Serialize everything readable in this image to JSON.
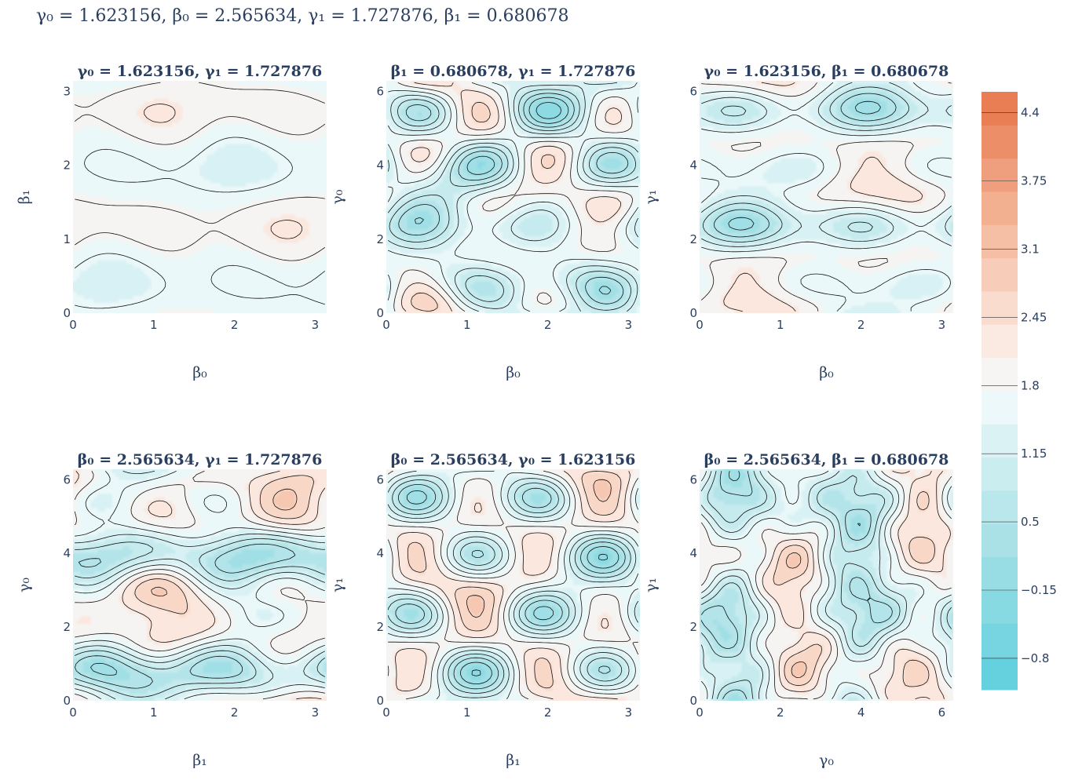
{
  "title": "γ₀ = 1.623156,  β₀ = 2.565634,  γ₁ = 1.727876,  β₁ = 0.680678",
  "params": {
    "gamma0": 1.623156,
    "beta0": 2.565634,
    "gamma1": 1.727876,
    "beta1": 0.680678
  },
  "chart_data": [
    {
      "type": "heatmap",
      "title": "γ₀ = 1.623156,  γ₁ = 1.727876",
      "xlabel": "β₀",
      "ylabel": "β₁",
      "xvar": "beta0",
      "yvar": "beta1",
      "xlim": [
        0,
        3.1416
      ],
      "ylim": [
        0,
        3.1416
      ],
      "xticks": [
        0,
        1,
        2,
        3
      ],
      "yticks": [
        0,
        1,
        2,
        3
      ],
      "xtick_labels": [
        "0",
        "1",
        "2",
        "3"
      ],
      "ytick_labels": [
        "0",
        "1",
        "2",
        "3"
      ]
    },
    {
      "type": "heatmap",
      "title": "β₁ = 0.680678,  γ₁ = 1.727876",
      "xlabel": "β₀",
      "ylabel": "γ₀",
      "xvar": "beta0",
      "yvar": "gamma0",
      "xlim": [
        0,
        3.1416
      ],
      "ylim": [
        0,
        6.2832
      ],
      "xticks": [
        0,
        1,
        2,
        3
      ],
      "yticks": [
        0,
        2,
        4,
        6
      ],
      "xtick_labels": [
        "0",
        "1",
        "2",
        "3"
      ],
      "ytick_labels": [
        "0",
        "2",
        "4",
        "6"
      ]
    },
    {
      "type": "heatmap",
      "title": "γ₀ = 1.623156,  β₁ = 0.680678",
      "xlabel": "β₀",
      "ylabel": "γ₁",
      "xvar": "beta0",
      "yvar": "gamma1",
      "xlim": [
        0,
        3.1416
      ],
      "ylim": [
        0,
        6.2832
      ],
      "xticks": [
        0,
        1,
        2,
        3
      ],
      "yticks": [
        0,
        2,
        4,
        6
      ],
      "xtick_labels": [
        "0",
        "1",
        "2",
        "3"
      ],
      "ytick_labels": [
        "0",
        "2",
        "4",
        "6"
      ]
    },
    {
      "type": "heatmap",
      "title": "β₀ = 2.565634,  γ₁ = 1.727876",
      "xlabel": "β₁",
      "ylabel": "γ₀",
      "xvar": "beta1",
      "yvar": "gamma0",
      "xlim": [
        0,
        3.1416
      ],
      "ylim": [
        0,
        6.2832
      ],
      "xticks": [
        0,
        1,
        2,
        3
      ],
      "yticks": [
        0,
        2,
        4,
        6
      ],
      "xtick_labels": [
        "0",
        "1",
        "2",
        "3"
      ],
      "ytick_labels": [
        "0",
        "2",
        "4",
        "6"
      ]
    },
    {
      "type": "heatmap",
      "title": "β₀ = 2.565634,  γ₀ = 1.623156",
      "xlabel": "β₁",
      "ylabel": "γ₁",
      "xvar": "beta1",
      "yvar": "gamma1",
      "xlim": [
        0,
        3.1416
      ],
      "ylim": [
        0,
        6.2832
      ],
      "xticks": [
        0,
        1,
        2,
        3
      ],
      "yticks": [
        0,
        2,
        4,
        6
      ],
      "xtick_labels": [
        "0",
        "1",
        "2",
        "3"
      ],
      "ytick_labels": [
        "0",
        "2",
        "4",
        "6"
      ]
    },
    {
      "type": "heatmap",
      "title": "β₀ = 2.565634,  β₁ = 0.680678",
      "xlabel": "γ₀",
      "ylabel": "γ₁",
      "xvar": "gamma0",
      "yvar": "gamma1",
      "xlim": [
        0,
        6.2832
      ],
      "ylim": [
        0,
        6.2832
      ],
      "xticks": [
        0,
        2,
        4,
        6
      ],
      "yticks": [
        0,
        2,
        4,
        6
      ],
      "xtick_labels": [
        "0",
        "2",
        "4",
        "6"
      ],
      "ytick_labels": [
        "0",
        "2",
        "4",
        "6"
      ]
    }
  ],
  "colorbar": {
    "min": -1.1,
    "max": 4.6,
    "ticks": [
      4.4,
      3.75,
      3.1,
      2.45,
      1.8,
      1.15,
      0.5,
      -0.15,
      -0.8
    ],
    "tick_labels": [
      "4.4",
      "3.75",
      "3.1",
      "2.45",
      "1.8",
      "1.15",
      "0.5",
      "−0.15",
      "−0.8"
    ],
    "level_step": 0.325,
    "colorscale": [
      [
        0.0,
        "#5ccfde"
      ],
      [
        0.25,
        "#a9e1e6"
      ],
      [
        0.5,
        "#f4fbfc"
      ],
      [
        0.6,
        "#fbe6dc"
      ],
      [
        0.8,
        "#f2b293"
      ],
      [
        1.0,
        "#e8744a"
      ]
    ]
  }
}
